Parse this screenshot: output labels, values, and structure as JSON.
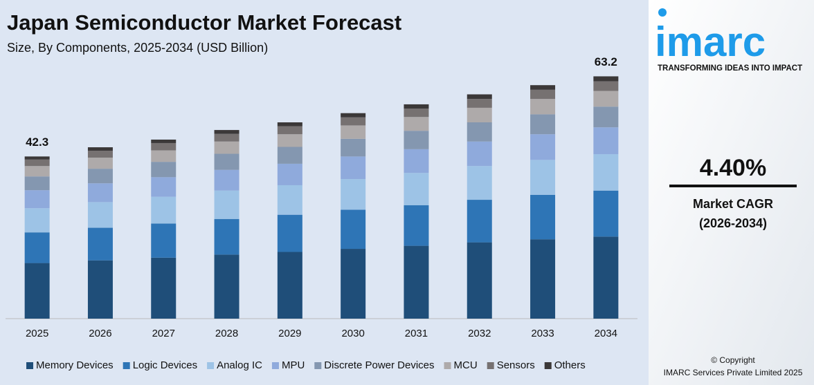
{
  "chart_data": {
    "type": "stacked_bar",
    "title": "Japan Semiconductor Market Forecast",
    "subtitle": "Size, By Components, 2025-2034 (USD Billion)",
    "categories": [
      "2025",
      "2026",
      "2027",
      "2028",
      "2029",
      "2030",
      "2031",
      "2032",
      "2033",
      "2034"
    ],
    "series": [
      {
        "name": "Memory Devices",
        "color": "#1f4e79",
        "values": [
          14.5,
          15.2,
          15.9,
          16.7,
          17.4,
          18.2,
          19.0,
          19.9,
          20.7,
          21.4
        ]
      },
      {
        "name": "Logic Devices",
        "color": "#2e75b6",
        "values": [
          8.0,
          8.5,
          8.9,
          9.3,
          9.7,
          10.2,
          10.6,
          11.1,
          11.6,
          12.0
        ]
      },
      {
        "name": "Analog IC",
        "color": "#9dc3e6",
        "values": [
          6.3,
          6.7,
          7.0,
          7.4,
          7.7,
          8.0,
          8.4,
          8.8,
          9.1,
          9.5
        ]
      },
      {
        "name": "MPU",
        "color": "#8faadc",
        "values": [
          4.7,
          4.9,
          5.1,
          5.4,
          5.6,
          5.9,
          6.2,
          6.4,
          6.7,
          7.0
        ]
      },
      {
        "name": "Discrete Power Devices",
        "color": "#8497b0",
        "values": [
          3.6,
          3.8,
          4.0,
          4.2,
          4.4,
          4.6,
          4.8,
          5.0,
          5.2,
          5.4
        ]
      },
      {
        "name": "MCU",
        "color": "#aeaaaa",
        "values": [
          2.7,
          2.9,
          3.0,
          3.2,
          3.3,
          3.5,
          3.6,
          3.8,
          4.0,
          4.1
        ]
      },
      {
        "name": "Sensors",
        "color": "#767171",
        "values": [
          1.7,
          1.8,
          1.9,
          2.0,
          2.1,
          2.1,
          2.2,
          2.3,
          2.4,
          2.5
        ]
      },
      {
        "name": "Others",
        "color": "#3b3838",
        "values": [
          0.8,
          0.9,
          0.9,
          1.0,
          1.0,
          1.1,
          1.1,
          1.2,
          1.2,
          1.3
        ]
      }
    ],
    "totals": [
      42.3,
      null,
      null,
      null,
      null,
      null,
      null,
      null,
      null,
      63.2
    ],
    "ylim": [
      0,
      64
    ]
  },
  "sidebar": {
    "logo": "imarc",
    "tagline": "TRANSFORMING IDEAS INTO IMPACT",
    "cagr": "4.40%",
    "cagr_label": "Market CAGR",
    "cagr_period": "(2026-2034)",
    "copyright": "© Copyright",
    "company": "IMARC Services Private Limited 2025"
  }
}
